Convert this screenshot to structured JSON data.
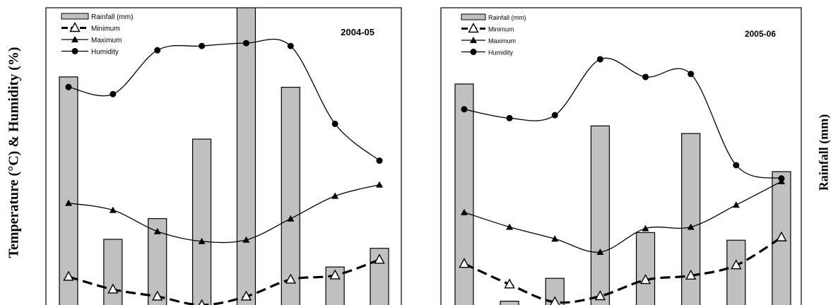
{
  "axis_labels": {
    "left": "Temperature (°C) & Humidity (%)",
    "right": "Rainfall (mm)"
  },
  "colors": {
    "bar_fill": "#c0c0c0",
    "bar_stroke": "#000000",
    "line": "#000000",
    "frame": "#000000"
  },
  "chart_data": [
    {
      "type": "bar+line",
      "title": "2004-05",
      "grid": false,
      "legend_position": "top-left",
      "series": [
        {
          "name": "Rainfall (mm)",
          "kind": "bar",
          "axis": "right",
          "values": [
            330,
            95,
            125,
            240,
            440,
            315,
            55,
            82
          ]
        },
        {
          "name": "Minimum",
          "kind": "line",
          "style": "dashed",
          "marker": "triangle-open",
          "values": [
            10,
            5.5,
            3,
            0,
            3,
            9,
            10.5,
            16
          ]
        },
        {
          "name": "Maximum",
          "kind": "line",
          "style": "solid",
          "marker": "triangle-filled",
          "values": [
            36,
            33.5,
            26,
            22.5,
            23,
            30.5,
            38.5,
            42.5
          ]
        },
        {
          "name": "Humidity",
          "kind": "line",
          "style": "solid",
          "marker": "circle-filled",
          "values": [
            77,
            74.5,
            90,
            91.5,
            92.5,
            91.5,
            64,
            51
          ]
        }
      ],
      "ylim": [
        0,
        105
      ],
      "y2lim": [
        0,
        430
      ]
    },
    {
      "type": "bar+line",
      "title": "2005-06",
      "grid": false,
      "legend_position": "top-left",
      "series": [
        {
          "name": "Rainfall (mm)",
          "kind": "bar",
          "axis": "right",
          "values": [
            290,
            5,
            35,
            235,
            95,
            225,
            85,
            175
          ]
        },
        {
          "name": "Minimum",
          "kind": "line",
          "style": "dashed",
          "marker": "triangle-open",
          "values": [
            13,
            6,
            0,
            2,
            7.5,
            9,
            12.5,
            22
          ]
        },
        {
          "name": "Maximum",
          "kind": "line",
          "style": "solid",
          "marker": "triangle-filled",
          "values": [
            30.5,
            25.5,
            21.5,
            17,
            25,
            25.5,
            33,
            41
          ]
        },
        {
          "name": "Humidity",
          "kind": "line",
          "style": "solid",
          "marker": "circle-filled",
          "values": [
            65.5,
            62.5,
            63.5,
            82.5,
            76.5,
            77.5,
            46.5,
            42
          ]
        }
      ],
      "ylim": [
        -1,
        100
      ],
      "y2lim": [
        0,
        390
      ]
    }
  ]
}
